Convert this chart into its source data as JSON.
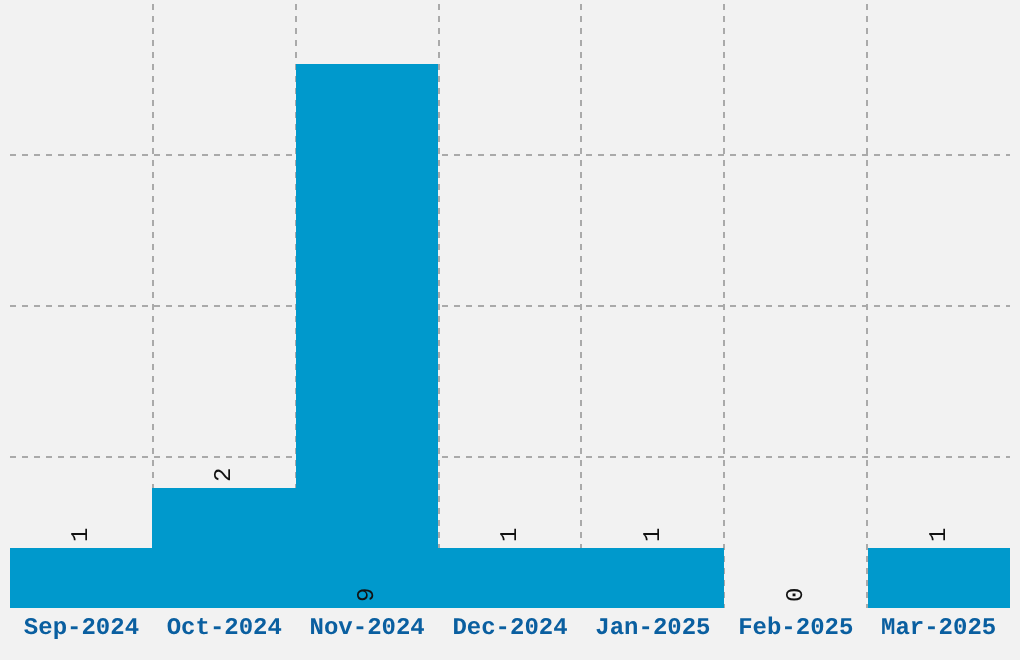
{
  "chart_data": {
    "type": "bar",
    "categories": [
      "Sep-2024",
      "Oct-2024",
      "Nov-2024",
      "Dec-2024",
      "Jan-2025",
      "Feb-2025",
      "Mar-2025"
    ],
    "values": [
      1,
      2,
      9,
      1,
      1,
      0,
      1
    ],
    "color": "#0099cc",
    "data_labels": true,
    "ylim": [
      0,
      10
    ],
    "yticks": [
      {
        "value": 2.5,
        "label": null
      },
      {
        "value": 5,
        "label": null
      },
      {
        "value": 7.5,
        "label": null
      }
    ],
    "grid": true,
    "tick_labels": "x"
  }
}
